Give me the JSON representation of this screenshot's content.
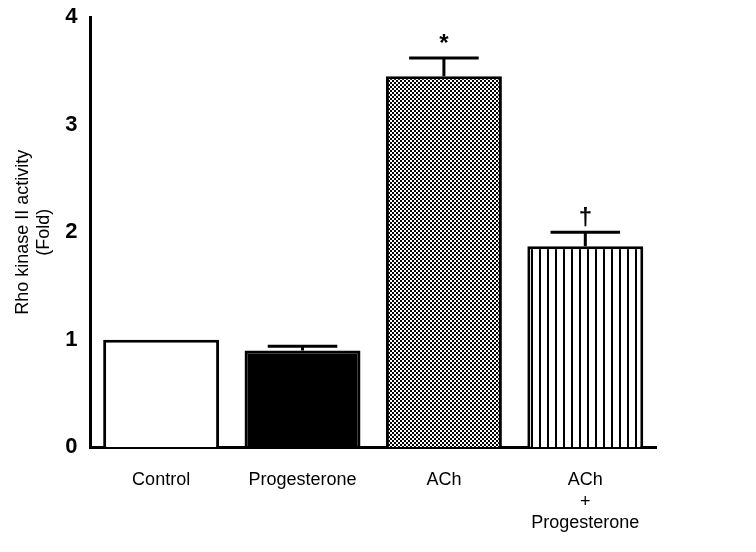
{
  "chart_data": {
    "type": "bar",
    "ylabel": "Rho kinase II activity (Fold)",
    "categories": [
      "Control",
      "Progesterone",
      "ACh",
      "ACh + Progesterone"
    ],
    "values": [
      1.0,
      0.9,
      3.45,
      1.87
    ],
    "errors": [
      0,
      0.04,
      0.17,
      0.13
    ],
    "annotations": [
      null,
      null,
      "*",
      "†"
    ],
    "colors": [
      "#ffffff",
      "#000000",
      "#ffffff",
      "#ffffff"
    ],
    "ylim": [
      0,
      4
    ],
    "yticks": [
      0,
      1,
      2,
      3,
      4
    ],
    "grid": false,
    "data_labels": false
  }
}
